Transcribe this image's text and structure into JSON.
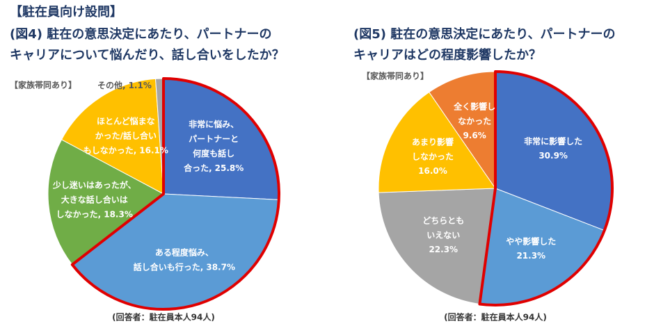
{
  "header": {
    "title": "【駐在員向け設問】"
  },
  "chart_data": [
    {
      "type": "pie",
      "title": [
        "(図4) 駐在の意思決定にあたり、パートナーの",
        "キャリアについて悩んだり、話し合いをしたか？"
      ],
      "subtitle": "【家族帯同あり】",
      "note": "(回答者：駐在員本人94人)",
      "categories": [
        [
          "非常に悩み、",
          "パートナーと",
          "何度も話し",
          "合った,"
        ],
        [
          "ある程度悩み、",
          "話し合いも行った,"
        ],
        [
          "少し迷いはあったが、",
          "大きな話し合いは",
          "しなかった,"
        ],
        [
          "ほとんど悩まな",
          "かった/話し合い",
          "もしなかった,"
        ],
        [
          "その他,"
        ]
      ],
      "values": [
        25.8,
        38.7,
        18.3,
        16.1,
        1.1
      ],
      "value_labels": [
        "25.8%",
        "38.7%",
        "18.3%",
        "16.1%",
        "1.1%"
      ],
      "colors": [
        "#4472c4",
        "#5b9bd5",
        "#70ad47",
        "#ffc000",
        "#a5a5a5"
      ],
      "highlight": [
        0,
        1
      ]
    },
    {
      "type": "pie",
      "title": [
        "(図5) 駐在の意思決定にあたり、パートナーの",
        "キャリアはどの程度影響したか？"
      ],
      "subtitle": "【家族帯同あり】",
      "note": "(回答者：駐在員本人94人)",
      "categories": [
        [
          "非常に影響した"
        ],
        [
          "やや影響した"
        ],
        [
          "どちらとも",
          "いえない"
        ],
        [
          "あまり影響",
          "しなかった"
        ],
        [
          "全く影響し",
          "なかった"
        ]
      ],
      "values": [
        30.9,
        21.3,
        22.3,
        16.0,
        9.6
      ],
      "value_labels": [
        "30.9%",
        "21.3%",
        "22.3%",
        "16.0%",
        "9.6%"
      ],
      "colors": [
        "#4472c4",
        "#5b9bd5",
        "#a5a5a5",
        "#ffc000",
        "#ed7d31"
      ],
      "highlight": [
        0,
        1
      ]
    }
  ]
}
